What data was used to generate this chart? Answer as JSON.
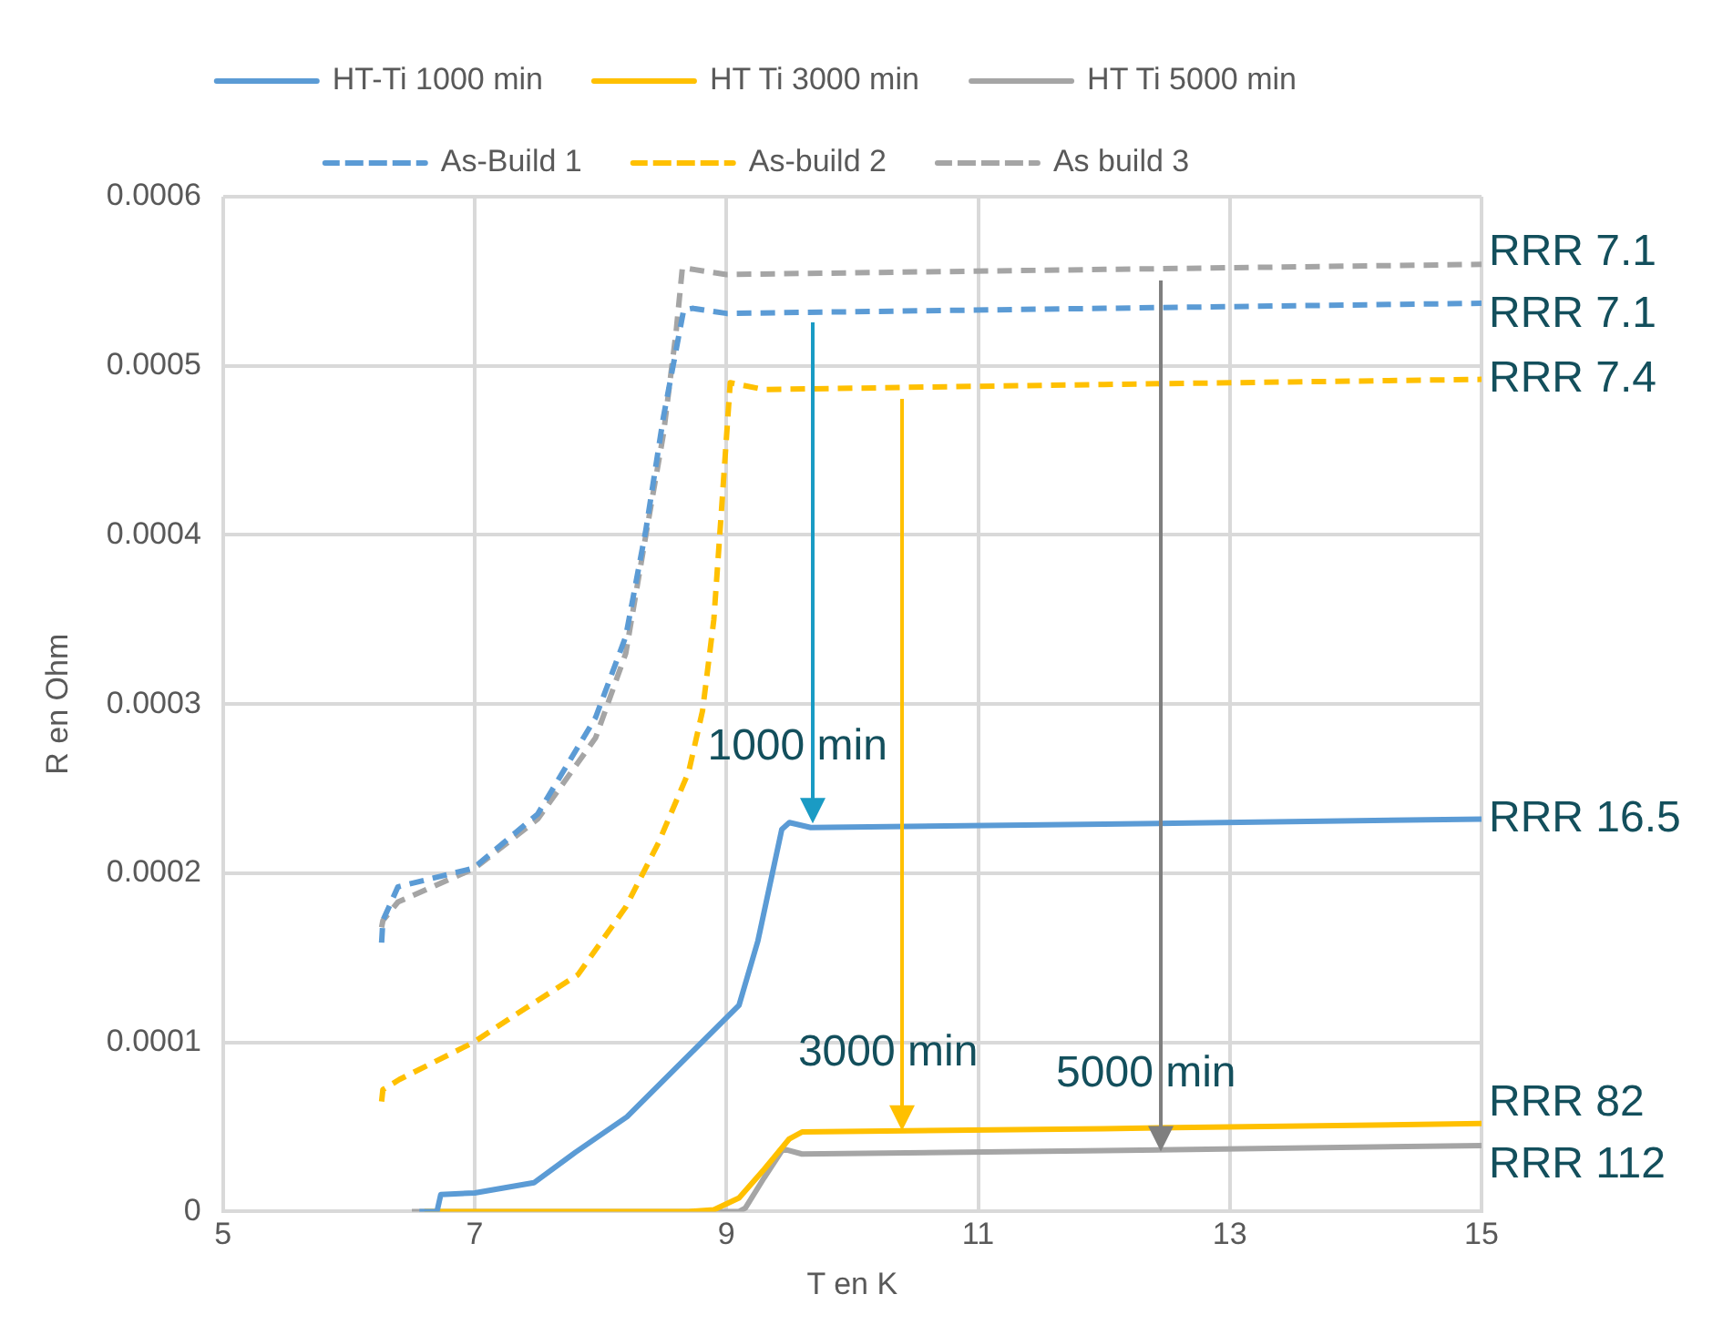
{
  "chart_data": {
    "type": "line",
    "xlabel": "T en K",
    "ylabel": "R en Ohm",
    "xlim": [
      5,
      15
    ],
    "xticks": [
      5,
      7,
      9,
      11,
      13,
      15
    ],
    "ylim": [
      0,
      0.0006
    ],
    "yticks": [
      0,
      0.0001,
      0.0002,
      0.0003,
      0.0004,
      0.0005,
      0.0006
    ],
    "grid": true,
    "legend": "top",
    "marker": "none",
    "series": [
      {
        "name": "HT-Ti 1000 min",
        "color": "#5b9bd5",
        "line_style": "solid",
        "x": [
          6.56,
          6.7,
          6.73,
          7.0,
          7.47,
          7.8,
          8.21,
          8.6,
          9.1,
          9.25,
          9.44,
          9.5,
          9.67,
          12,
          15
        ],
        "values": [
          0,
          0,
          1e-05,
          1.1e-05,
          1.7e-05,
          3.5e-05,
          5.6e-05,
          8.5e-05,
          0.000122,
          0.00016,
          0.000226,
          0.00023,
          0.000227,
          0.000229,
          0.000232
        ]
      },
      {
        "name": "HT Ti 3000 min",
        "color": "#ffc000",
        "line_style": "solid",
        "x": [
          6.6,
          8.7,
          8.9,
          9.1,
          9.3,
          9.5,
          9.6,
          12,
          15
        ],
        "values": [
          0,
          0,
          1e-06,
          8e-06,
          2.5e-05,
          4.3e-05,
          4.7e-05,
          4.9e-05,
          5.2e-05
        ]
      },
      {
        "name": "HT Ti 5000 min",
        "color": "#a5a5a5",
        "line_style": "solid",
        "x": [
          6.5,
          9.1,
          9.15,
          9.3,
          9.45,
          9.6,
          12,
          15
        ],
        "values": [
          0,
          0,
          2e-06,
          2e-05,
          3.7e-05,
          3.4e-05,
          3.6e-05,
          3.9e-05
        ]
      },
      {
        "name": "As-Build 1",
        "color": "#5b9bd5",
        "line_style": "dashed",
        "x": [
          6.26,
          6.27,
          6.39,
          6.99,
          7.5,
          7.96,
          8.2,
          8.36,
          8.5,
          8.66,
          8.73,
          9,
          12,
          15
        ],
        "values": [
          0.000159,
          0.000172,
          0.000192,
          0.000203,
          0.000235,
          0.000292,
          0.00034,
          0.000403,
          0.00047,
          0.000533,
          0.000534,
          0.000531,
          0.000534,
          0.000537
        ]
      },
      {
        "name": "As-build 2",
        "color": "#ffc000",
        "line_style": "dashed",
        "x": [
          6.26,
          6.27,
          6.4,
          6.99,
          7.4,
          7.82,
          8.2,
          8.46,
          8.7,
          8.81,
          8.9,
          8.96,
          9.03,
          9.3,
          12,
          15
        ],
        "values": [
          6.5e-05,
          7.2e-05,
          7.8e-05,
          0.0001,
          0.00012,
          0.00014,
          0.00018,
          0.000218,
          0.00026,
          0.000296,
          0.00035,
          0.000414,
          0.00049,
          0.000486,
          0.000489,
          0.000492
        ]
      },
      {
        "name": "As build 3",
        "color": "#a5a5a5",
        "line_style": "dashed",
        "x": [
          6.26,
          6.27,
          6.39,
          7.0,
          7.5,
          7.96,
          8.2,
          8.36,
          8.5,
          8.6,
          8.65,
          9,
          12,
          15
        ],
        "values": [
          0.000168,
          0.000172,
          0.000183,
          0.000203,
          0.000232,
          0.00028,
          0.00033,
          0.0004,
          0.00046,
          0.00052,
          0.000558,
          0.000554,
          0.000557,
          0.00056
        ]
      }
    ],
    "annotations": [
      {
        "text": "1000 min",
        "x": 9.68,
        "y": 0.000229
      },
      {
        "text": "3000 min",
        "x": 10.4,
        "y": 4.8e-05
      },
      {
        "text": "5000 min",
        "x": 12.45,
        "y": 3.6e-05
      },
      {
        "text": "RRR 16.5",
        "x": 15,
        "y": 0.000232
      },
      {
        "text": "RRR 82",
        "x": 15,
        "y": 5.2e-05
      },
      {
        "text": "RRR 112",
        "x": 15,
        "y": 3.9e-05
      },
      {
        "text": "RRR 7.1",
        "x": 15,
        "y": 0.000537
      },
      {
        "text": "RRR 7.4",
        "x": 15,
        "y": 0.000492
      },
      {
        "text": "RRR 7.1",
        "x": 15,
        "y": 0.00056
      }
    ]
  }
}
